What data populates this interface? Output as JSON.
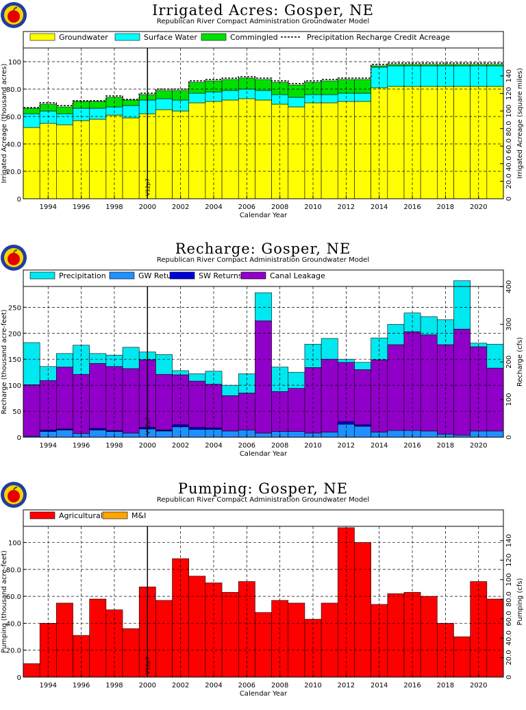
{
  "colors": {
    "groundwater": "#ffff00",
    "surface_water": "#00ffff",
    "commingled": "#00e000",
    "precipitation": "#00e8f0",
    "gw_returns": "#1e90ff",
    "sw_returns": "#0000d8",
    "canal_leakage": "#9000c8",
    "agricultural": "#ff0000",
    "mi": "#ffa500",
    "precip_credit_line": "#000000",
    "logo_outer": "#1f3f9f",
    "logo_ring": "#ffd200",
    "apple": "#e00000"
  },
  "chart_data": [
    {
      "id": "irrigated",
      "type": "bar",
      "title": "Irrigated  Acres:  Gosper,  NE",
      "subtitle": "Republican  River  Compact  Administration  Groundwater  Model",
      "xlabel": "Calendar  Year",
      "ylabel": "Irrigated  Acreage  (thousand  acres)",
      "y2label": "Irrigated  Acreage  (square  miles)",
      "xlim": [
        1993,
        2022
      ],
      "ylim": [
        0,
        110
      ],
      "y2lim": [
        0,
        171.875
      ],
      "yticks": [
        0,
        20,
        40,
        60,
        80,
        100
      ],
      "y2ticks": [
        0,
        20,
        40,
        60,
        80,
        100,
        120,
        140
      ],
      "ytick_labels": [
        "0",
        "20.0",
        "40.0",
        "60.0",
        "80.0",
        "100"
      ],
      "y2tick_labels": [
        "0",
        "20.0",
        "40.0",
        "60.0",
        "80.0",
        "100",
        "120",
        "140"
      ],
      "xtick_labels": [
        "1994",
        "1996",
        "1998",
        "2000",
        "2002",
        "2004",
        "2006",
        "2008",
        "2010",
        "2012",
        "2014",
        "2016",
        "2018",
        "2020"
      ],
      "grid": true,
      "legend_placement": "top",
      "marker": {
        "x": 2000.5,
        "label": "V12p7"
      },
      "x": [
        1993,
        1994,
        1995,
        1996,
        1997,
        1998,
        1999,
        2000,
        2001,
        2002,
        2003,
        2004,
        2005,
        2006,
        2007,
        2008,
        2009,
        2010,
        2011,
        2012,
        2013,
        2014,
        2015,
        2016,
        2017,
        2018,
        2019,
        2020,
        2021
      ],
      "series": [
        {
          "name": "Groundwater",
          "color_key": "groundwater",
          "values": [
            52,
            55,
            54,
            57,
            58,
            61,
            59,
            62,
            65,
            64,
            70,
            71,
            72,
            73,
            72,
            69,
            67,
            70,
            70,
            71,
            71,
            81,
            82,
            82,
            82,
            82,
            82,
            82,
            82
          ]
        },
        {
          "name": "Surface  Water",
          "color_key": "surface_water",
          "values": [
            10,
            9,
            8,
            9,
            8,
            6,
            9,
            10,
            8,
            8,
            7,
            7,
            7,
            7,
            7,
            7,
            7,
            6,
            6,
            6,
            6,
            15,
            15,
            15,
            15,
            15,
            15,
            15,
            15
          ]
        },
        {
          "name": "Commingled",
          "color_key": "commingled",
          "values": [
            4,
            5,
            5,
            5,
            5,
            7,
            4,
            4,
            6,
            7,
            8,
            8,
            8,
            8,
            8,
            9,
            9,
            9,
            10,
            10,
            10,
            1,
            1,
            1,
            1,
            1,
            1,
            1,
            1
          ]
        }
      ],
      "line_series": {
        "name": "Precipitation  Recharge  Credit  Acreage",
        "values": [
          66.5,
          70,
          68,
          71.5,
          71.5,
          75,
          72.5,
          77,
          80,
          80,
          86,
          87,
          88,
          89,
          88,
          86,
          84,
          86,
          87,
          88,
          88,
          98,
          99,
          99,
          99,
          99,
          99,
          99,
          99
        ]
      }
    },
    {
      "id": "recharge",
      "type": "bar",
      "title": "Recharge:  Gosper,  NE",
      "subtitle": "Republican  River  Compact  Administration  Groundwater  Model",
      "xlabel": "Calendar  Year",
      "ylabel": "Recharge  (thousand  acre-feet)",
      "y2label": "Recharge  (cfs)",
      "xlim": [
        1993,
        2022
      ],
      "ylim": [
        0,
        290
      ],
      "y2lim": [
        0,
        400.55
      ],
      "yticks": [
        0,
        50,
        100,
        150,
        200,
        250
      ],
      "y2ticks": [
        0,
        100,
        200,
        300,
        400
      ],
      "ytick_labels": [
        "0",
        "50",
        "100",
        "150",
        "200",
        "250"
      ],
      "y2tick_labels": [
        "0",
        "100",
        "200",
        "300",
        "400"
      ],
      "xtick_labels": [
        "1994",
        "1996",
        "1998",
        "2000",
        "2002",
        "2004",
        "2006",
        "2008",
        "2010",
        "2012",
        "2014",
        "2016",
        "2018",
        "2020"
      ],
      "grid": true,
      "legend_placement": "top",
      "marker": {
        "x": 2000.5,
        "label": "V12p7"
      },
      "x": [
        1993,
        1994,
        1995,
        1996,
        1997,
        1998,
        1999,
        2000,
        2001,
        2002,
        2003,
        2004,
        2005,
        2006,
        2007,
        2008,
        2009,
        2010,
        2011,
        2012,
        2013,
        2014,
        2015,
        2016,
        2017,
        2018,
        2019,
        2020,
        2021
      ],
      "series": [
        {
          "name": "GW  Returns",
          "color_key": "gw_returns",
          "values": [
            2,
            11,
            14,
            7,
            14,
            11,
            8,
            16,
            12,
            20,
            15,
            15,
            12,
            14,
            8,
            11,
            11,
            8,
            10,
            25,
            21,
            10,
            13,
            13,
            12,
            6,
            4,
            12,
            12
          ]
        },
        {
          "name": "SW  Returns",
          "color_key": "sw_returns",
          "values": [
            0,
            3,
            2,
            0,
            3,
            2,
            0,
            3,
            2,
            4,
            4,
            3,
            0,
            0,
            0,
            0,
            0,
            0,
            0,
            5,
            3,
            0,
            0,
            0,
            0,
            0,
            0,
            0,
            0
          ]
        },
        {
          "name": "Canal  Leakage",
          "color_key": "canal_leakage",
          "values": [
            99,
            95,
            119,
            114,
            125,
            123,
            124,
            130,
            107,
            96,
            89,
            84,
            68,
            71,
            216,
            77,
            83,
            126,
            140,
            114,
            106,
            139,
            165,
            190,
            185,
            172,
            204,
            162,
            121
          ]
        },
        {
          "name": "Precipitation",
          "color_key": "precipitation",
          "values": [
            81,
            27,
            26,
            56,
            19,
            22,
            41,
            15,
            38,
            8,
            14,
            25,
            20,
            37,
            54,
            47,
            31,
            45,
            40,
            6,
            14,
            42,
            39,
            36,
            35,
            48,
            93,
            7,
            46
          ]
        }
      ]
    },
    {
      "id": "pumping",
      "type": "bar",
      "title": "Pumping:  Gosper,  NE",
      "subtitle": "Republican  River  Compact  Administration  Groundwater  Model",
      "xlabel": "Calendar  Year",
      "ylabel": "Pumping  (thousand  acre-feet)",
      "y2label": "Pumping  (cfs)",
      "xlim": [
        1993,
        2022
      ],
      "ylim": [
        0,
        112
      ],
      "y2lim": [
        0,
        154.7
      ],
      "yticks": [
        0,
        20,
        40,
        60,
        80,
        100
      ],
      "y2ticks": [
        0,
        20,
        40,
        60,
        80,
        100,
        120,
        140
      ],
      "ytick_labels": [
        "0",
        "20.0",
        "40.0",
        "60.0",
        "80.0",
        "100"
      ],
      "y2tick_labels": [
        "0",
        "20.0",
        "40.0",
        "60.0",
        "80.0",
        "100",
        "120",
        "140"
      ],
      "xtick_labels": [
        "1994",
        "1996",
        "1998",
        "2000",
        "2002",
        "2004",
        "2006",
        "2008",
        "2010",
        "2012",
        "2014",
        "2016",
        "2018",
        "2020"
      ],
      "grid": true,
      "legend_placement": "top",
      "marker": {
        "x": 2000.5,
        "label": "V12p7"
      },
      "x": [
        1993,
        1994,
        1995,
        1996,
        1997,
        1998,
        1999,
        2000,
        2001,
        2002,
        2003,
        2004,
        2005,
        2006,
        2007,
        2008,
        2009,
        2010,
        2011,
        2012,
        2013,
        2014,
        2015,
        2016,
        2017,
        2018,
        2019,
        2020,
        2021
      ],
      "series": [
        {
          "name": "M&I",
          "color_key": "mi",
          "values": [
            0,
            0,
            0,
            0,
            0,
            0,
            0,
            0,
            0,
            0,
            0,
            0,
            0,
            0,
            0,
            0,
            0,
            0,
            0,
            0,
            0,
            0,
            0,
            0,
            0,
            0,
            0,
            0,
            0
          ]
        },
        {
          "name": "Agricultural",
          "color_key": "agricultural",
          "values": [
            10,
            40,
            55,
            31,
            58,
            50,
            36,
            67,
            57,
            88,
            75,
            70,
            63,
            71,
            48,
            57,
            55,
            43,
            55,
            111,
            100,
            54,
            62,
            63,
            60,
            40,
            30,
            71,
            58
          ]
        }
      ],
      "legend_order": [
        "Agricultural",
        "M&I"
      ]
    }
  ]
}
